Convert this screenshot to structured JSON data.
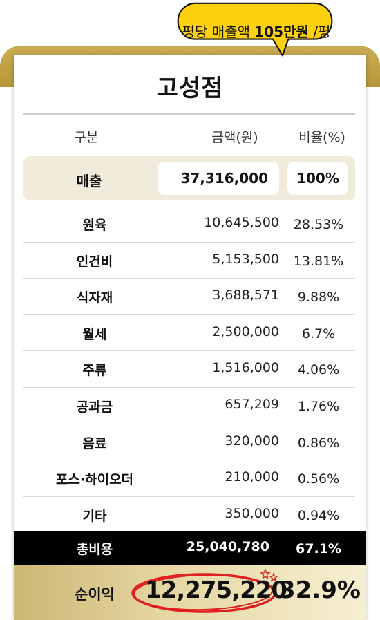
{
  "bubble": {
    "prefix": "평당 매출액",
    "value": "105만원",
    "suffix": "/평"
  },
  "store": {
    "title": "고성점"
  },
  "header": {
    "category": "구분",
    "amount": "금액(원)",
    "ratio": "비율(%)"
  },
  "sales": {
    "label": "매출",
    "amount": "37,316,000",
    "ratio": "100%"
  },
  "rows": [
    {
      "label": "원육",
      "amount": "10,645,500",
      "ratio": "28.53%"
    },
    {
      "label": "인건비",
      "amount": "5,153,500",
      "ratio": "13.81%"
    },
    {
      "label": "식자재",
      "amount": "3,688,571",
      "ratio": "9.88%"
    },
    {
      "label": "월세",
      "amount": "2,500,000",
      "ratio": "6.7%"
    },
    {
      "label": "주류",
      "amount": "1,516,000",
      "ratio": "4.06%"
    },
    {
      "label": "공과금",
      "amount": "657,209",
      "ratio": "1.76%"
    },
    {
      "label": "음료",
      "amount": "320,000",
      "ratio": "0.86%"
    },
    {
      "label": "포스·하이오더",
      "amount": "210,000",
      "ratio": "0.56%"
    },
    {
      "label": "기타",
      "amount": "350,000",
      "ratio": "0.94%"
    }
  ],
  "total": {
    "label": "총비용",
    "amount": "25,040,780",
    "ratio": "67.1%"
  },
  "profit": {
    "label": "순이익",
    "amount": "12,275,220",
    "ratio": "32.9%"
  },
  "colors": {
    "bubble": "#fdd010",
    "gold": "#c9ac52",
    "sales_bg": "#f0ebdb",
    "total_bg": "#000000",
    "circle": "#e02020"
  },
  "icons": {
    "highlight": "red-circle-annotation",
    "sparkle": "star-sparkle-icon"
  }
}
